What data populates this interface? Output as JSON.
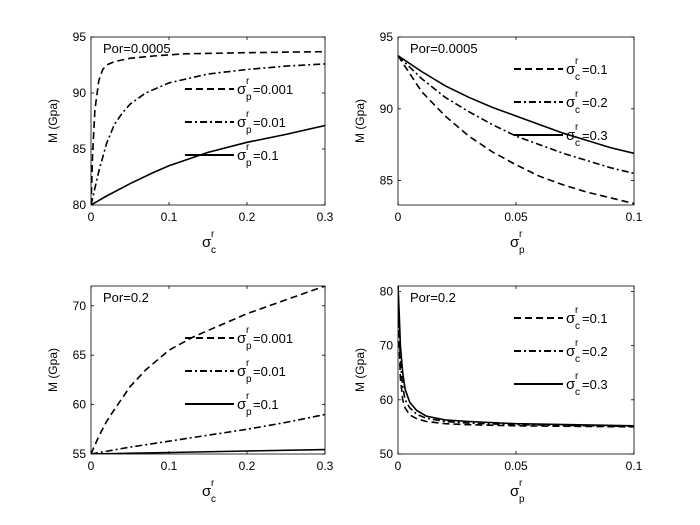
{
  "chart_data": [
    {
      "type": "line",
      "panel": "top-left",
      "annotation": "Por=0.0005",
      "xlabel": {
        "base": "σ",
        "sup": "r",
        "sub": "c"
      },
      "ylabel": "M (Gpa)",
      "xlim": [
        0,
        0.3
      ],
      "ylim": [
        80,
        95
      ],
      "xticks": [
        0,
        0.1,
        0.2,
        0.3
      ],
      "xtick_labels": [
        "0",
        "0.1",
        "0.2",
        "0.3"
      ],
      "yticks": [
        80,
        85,
        90,
        95
      ],
      "ytick_labels": [
        "80",
        "85",
        "90",
        "95"
      ],
      "legend": {
        "placement": "right",
        "base": "σ",
        "sup": "r",
        "sub": "p"
      },
      "series": [
        {
          "name": "=0.001",
          "style": "dashed",
          "x": [
            0,
            0.002,
            0.005,
            0.01,
            0.015,
            0.02,
            0.03,
            0.05,
            0.08,
            0.12,
            0.2,
            0.3
          ],
          "y": [
            80,
            84.5,
            88.5,
            91.1,
            92.1,
            92.5,
            92.8,
            93.1,
            93.3,
            93.5,
            93.6,
            93.7
          ]
        },
        {
          "name": "=0.01",
          "style": "dashdot",
          "x": [
            0,
            0.005,
            0.01,
            0.02,
            0.03,
            0.04,
            0.05,
            0.07,
            0.1,
            0.15,
            0.2,
            0.25,
            0.3
          ],
          "y": [
            80,
            81.5,
            83,
            85.5,
            87.2,
            88.2,
            89,
            90,
            90.9,
            91.7,
            92.1,
            92.4,
            92.6
          ]
        },
        {
          "name": "=0.1",
          "style": "solid",
          "x": [
            0,
            0.02,
            0.05,
            0.08,
            0.1,
            0.15,
            0.2,
            0.25,
            0.3
          ],
          "y": [
            80,
            80.8,
            81.9,
            82.9,
            83.5,
            84.7,
            85.6,
            86.3,
            87.1
          ]
        }
      ]
    },
    {
      "type": "line",
      "panel": "top-right",
      "annotation": "Por=0.0005",
      "xlabel": {
        "base": "σ",
        "sup": "r",
        "sub": "p"
      },
      "ylabel": "M (Gpa)",
      "xlim": [
        0,
        0.1
      ],
      "ylim": [
        83.3,
        95
      ],
      "xticks": [
        0,
        0.05,
        0.1
      ],
      "xtick_labels": [
        "0",
        "0.05",
        "0.1"
      ],
      "yticks": [
        85,
        90,
        95
      ],
      "ytick_labels": [
        "85",
        "90",
        "95"
      ],
      "legend": {
        "placement": "top-right",
        "base": "σ",
        "sup": "r",
        "sub": "c"
      },
      "series": [
        {
          "name": "=0.1",
          "style": "dashed",
          "x": [
            0,
            0.01,
            0.02,
            0.03,
            0.04,
            0.05,
            0.06,
            0.07,
            0.08,
            0.09,
            0.1
          ],
          "y": [
            93.7,
            91.2,
            89.5,
            88.1,
            87,
            86.1,
            85.3,
            84.7,
            84.2,
            83.8,
            83.4
          ]
        },
        {
          "name": "=0.2",
          "style": "dashdot",
          "x": [
            0,
            0.01,
            0.02,
            0.03,
            0.04,
            0.05,
            0.06,
            0.07,
            0.08,
            0.09,
            0.1
          ],
          "y": [
            93.7,
            92.1,
            90.8,
            89.8,
            88.9,
            88.1,
            87.5,
            86.9,
            86.4,
            85.9,
            85.5
          ]
        },
        {
          "name": "=0.3",
          "style": "solid",
          "x": [
            0,
            0.01,
            0.02,
            0.03,
            0.04,
            0.05,
            0.06,
            0.07,
            0.08,
            0.09,
            0.1
          ],
          "y": [
            93.7,
            92.6,
            91.6,
            90.8,
            90.1,
            89.5,
            88.9,
            88.3,
            87.8,
            87.3,
            86.9
          ]
        }
      ]
    },
    {
      "type": "line",
      "panel": "bottom-left",
      "annotation": "Por=0.2",
      "xlabel": {
        "base": "σ",
        "sup": "r",
        "sub": "c"
      },
      "ylabel": "M (Gpa)",
      "xlim": [
        0,
        0.3
      ],
      "ylim": [
        55,
        72
      ],
      "xticks": [
        0,
        0.1,
        0.2,
        0.3
      ],
      "xtick_labels": [
        "0",
        "0.1",
        "0.2",
        "0.3"
      ],
      "yticks": [
        55,
        60,
        65,
        70
      ],
      "ytick_labels": [
        "55",
        "60",
        "65",
        "70"
      ],
      "legend": {
        "placement": "right",
        "base": "σ",
        "sup": "r",
        "sub": "p"
      },
      "series": [
        {
          "name": "=0.001",
          "style": "dashed",
          "x": [
            0,
            0.01,
            0.02,
            0.03,
            0.05,
            0.07,
            0.1,
            0.13,
            0.15,
            0.2,
            0.25,
            0.3
          ],
          "y": [
            55,
            56.8,
            58.3,
            59.5,
            61.8,
            63.5,
            65.5,
            66.8,
            67.5,
            69.2,
            70.6,
            72
          ]
        },
        {
          "name": "=0.01",
          "style": "dashdot",
          "x": [
            0,
            0.05,
            0.1,
            0.15,
            0.2,
            0.25,
            0.3
          ],
          "y": [
            55,
            55.7,
            56.3,
            56.9,
            57.5,
            58.2,
            59
          ]
        },
        {
          "name": "=0.1",
          "style": "solid",
          "x": [
            0,
            0.1,
            0.2,
            0.3
          ],
          "y": [
            55,
            55.15,
            55.3,
            55.45
          ]
        }
      ]
    },
    {
      "type": "line",
      "panel": "bottom-right",
      "annotation": "Por=0.2",
      "xlabel": {
        "base": "σ",
        "sup": "r",
        "sub": "p"
      },
      "ylabel": "M (Gpa)",
      "xlim": [
        0,
        0.1
      ],
      "ylim": [
        50,
        81
      ],
      "xticks": [
        0,
        0.05,
        0.1
      ],
      "xtick_labels": [
        "0",
        "0.05",
        "0.1"
      ],
      "yticks": [
        50,
        60,
        70,
        80
      ],
      "ytick_labels": [
        "50",
        "60",
        "70",
        "80"
      ],
      "legend": {
        "placement": "top-right",
        "base": "σ",
        "sup": "r",
        "sub": "c"
      },
      "series": [
        {
          "name": "=0.1",
          "style": "dashed",
          "x": [
            0,
            0.0005,
            0.001,
            0.002,
            0.003,
            0.005,
            0.008,
            0.012,
            0.02,
            0.03,
            0.05,
            0.1
          ],
          "y": [
            81,
            70,
            64,
            60,
            58.5,
            57.2,
            56.5,
            56,
            55.6,
            55.4,
            55.2,
            55
          ]
        },
        {
          "name": "=0.2",
          "style": "dashdot",
          "x": [
            0,
            0.0005,
            0.001,
            0.002,
            0.003,
            0.005,
            0.008,
            0.012,
            0.02,
            0.03,
            0.05,
            0.1
          ],
          "y": [
            81,
            73,
            67,
            62.5,
            60,
            58.5,
            57.3,
            56.6,
            56,
            55.7,
            55.4,
            55.1
          ]
        },
        {
          "name": "=0.3",
          "style": "solid",
          "x": [
            0,
            0.0005,
            0.001,
            0.002,
            0.003,
            0.005,
            0.008,
            0.012,
            0.02,
            0.03,
            0.05,
            0.1
          ],
          "y": [
            81,
            76,
            70,
            65,
            62,
            59.5,
            58,
            57,
            56.3,
            56,
            55.6,
            55.2
          ]
        }
      ]
    }
  ]
}
